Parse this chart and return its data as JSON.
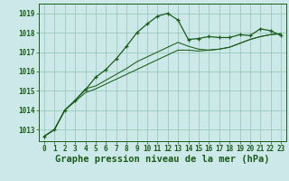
{
  "title": "Graphe pression niveau de la mer (hPa)",
  "bg_color": "#cce8e8",
  "grid_color": "#99ccbb",
  "line_color": "#1a5c1a",
  "x_ticks": [
    0,
    1,
    2,
    3,
    4,
    5,
    6,
    7,
    8,
    9,
    10,
    11,
    12,
    13,
    14,
    15,
    16,
    17,
    18,
    19,
    20,
    21,
    22,
    23
  ],
  "y_ticks": [
    1013,
    1014,
    1015,
    1016,
    1017,
    1018,
    1019
  ],
  "ylim": [
    1012.4,
    1019.5
  ],
  "xlim": [
    -0.5,
    23.5
  ],
  "series1": [
    1012.65,
    1013.0,
    1014.0,
    1014.5,
    1015.05,
    1015.7,
    1016.1,
    1016.65,
    1017.3,
    1018.0,
    1018.45,
    1018.85,
    1019.0,
    1018.65,
    1017.65,
    1017.7,
    1017.8,
    1017.75,
    1017.75,
    1017.9,
    1017.85,
    1018.2,
    1018.1,
    1017.85
  ],
  "series2": [
    1012.65,
    1013.0,
    1014.0,
    1014.45,
    1014.9,
    1015.1,
    1015.35,
    1015.6,
    1015.85,
    1016.1,
    1016.35,
    1016.6,
    1016.85,
    1017.1,
    1017.1,
    1017.05,
    1017.1,
    1017.15,
    1017.25,
    1017.45,
    1017.65,
    1017.8,
    1017.9,
    1017.95
  ],
  "series3": [
    1012.65,
    1013.0,
    1014.0,
    1014.5,
    1015.1,
    1015.25,
    1015.55,
    1015.85,
    1016.15,
    1016.5,
    1016.75,
    1017.0,
    1017.25,
    1017.5,
    1017.3,
    1017.15,
    1017.1,
    1017.15,
    1017.25,
    1017.45,
    1017.65,
    1017.8,
    1017.9,
    1017.95
  ],
  "tick_fontsize": 5.5,
  "xlabel_fontsize": 7.5
}
